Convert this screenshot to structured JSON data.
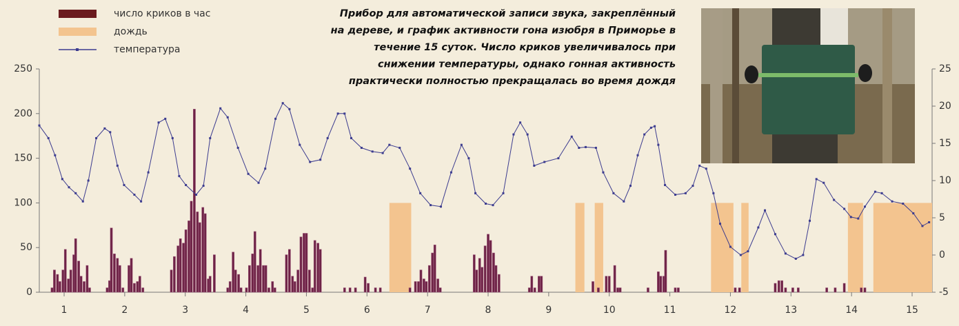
{
  "chart_data": {
    "type": "combo",
    "caption": [
      "Прибор для автоматической записи звука, закреплённый",
      "на дереве, и график активности гона изюбря в Приморье в",
      "течение 15 суток. Число криков увеличивалось при",
      "снижении температуры, однако гонная активность",
      "практически полностью прекращалась во время дождя"
    ],
    "legend": "upper left",
    "xlim": [
      0.59,
      15.33
    ],
    "xticks": [
      1,
      2,
      3,
      4,
      5,
      6,
      7,
      8,
      9,
      10,
      11,
      12,
      13,
      14,
      15
    ],
    "ylim": [
      0,
      250
    ],
    "yticks": [
      0,
      50,
      100,
      150,
      200,
      250
    ],
    "y2lim": [
      -5,
      25
    ],
    "y2ticks": [
      -5,
      0,
      5,
      10,
      15,
      20,
      25
    ],
    "series": [
      {
        "name": "число криков в час",
        "type": "bar",
        "color": "#6e2346",
        "x": [
          0.8,
          0.84,
          0.89,
          0.93,
          0.98,
          1.02,
          1.07,
          1.11,
          1.16,
          1.19,
          1.24,
          1.28,
          1.33,
          1.38,
          1.42,
          1.71,
          1.75,
          1.78,
          1.83,
          1.88,
          1.92,
          1.97,
          2.07,
          2.11,
          2.16,
          2.21,
          2.25,
          2.3,
          2.77,
          2.82,
          2.88,
          2.92,
          2.97,
          3.01,
          3.06,
          3.1,
          3.15,
          3.2,
          3.24,
          3.29,
          3.33,
          3.38,
          3.41,
          3.48,
          3.7,
          3.74,
          3.79,
          3.83,
          3.88,
          3.92,
          4.01,
          4.06,
          4.11,
          4.15,
          4.2,
          4.24,
          4.29,
          4.33,
          4.38,
          4.44,
          4.48,
          4.67,
          4.72,
          4.77,
          4.81,
          4.86,
          4.91,
          4.96,
          5.0,
          5.05,
          5.1,
          5.14,
          5.19,
          5.23,
          5.63,
          5.72,
          5.81,
          5.97,
          6.02,
          6.14,
          6.22,
          6.71,
          6.8,
          6.85,
          6.89,
          6.94,
          6.98,
          7.03,
          7.08,
          7.12,
          7.17,
          7.21,
          7.77,
          7.81,
          7.86,
          7.9,
          7.95,
          8.0,
          8.04,
          8.09,
          8.13,
          8.18,
          8.68,
          8.72,
          8.77,
          8.84,
          8.88,
          9.73,
          9.82,
          9.95,
          10.0,
          10.09,
          10.14,
          10.18,
          10.64,
          10.81,
          10.85,
          10.9,
          10.93,
          11.09,
          11.14,
          12.08,
          12.15,
          12.74,
          12.8,
          12.85,
          12.91,
          13.03,
          13.12,
          13.59,
          13.73,
          13.88,
          14.16,
          14.22
        ],
        "values": [
          5,
          25,
          20,
          12,
          25,
          48,
          15,
          25,
          42,
          60,
          35,
          18,
          12,
          30,
          5,
          5,
          13,
          72,
          43,
          38,
          30,
          5,
          30,
          38,
          10,
          12,
          18,
          5,
          25,
          40,
          52,
          60,
          55,
          70,
          80,
          102,
          205,
          90,
          78,
          95,
          88,
          15,
          18,
          42,
          5,
          12,
          45,
          25,
          20,
          5,
          5,
          30,
          43,
          68,
          30,
          48,
          30,
          30,
          5,
          12,
          5,
          42,
          48,
          18,
          12,
          25,
          62,
          66,
          66,
          25,
          5,
          58,
          55,
          48,
          5,
          5,
          5,
          17,
          10,
          5,
          5,
          5,
          12,
          12,
          25,
          15,
          12,
          30,
          44,
          53,
          15,
          5,
          42,
          25,
          38,
          28,
          52,
          65,
          58,
          44,
          30,
          20,
          5,
          18,
          5,
          18,
          18,
          12,
          5,
          18,
          18,
          30,
          5,
          5,
          5,
          23,
          18,
          18,
          47,
          5,
          5,
          5,
          5,
          10,
          13,
          13,
          5,
          5,
          5,
          5,
          5,
          10,
          5,
          5
        ]
      },
      {
        "name": "дождь",
        "type": "span",
        "color": "#f3c48f",
        "x": [
          6.37,
          9.44,
          9.76,
          11.68,
          12.18,
          13.94,
          14.36
        ],
        "x_end": [
          6.73,
          9.59,
          9.9,
          12.05,
          12.3,
          14.19,
          15.33
        ],
        "values": [
          100,
          100,
          100,
          100,
          100,
          100,
          100
        ]
      },
      {
        "name": "температура",
        "type": "line",
        "axis": "y2",
        "color": "#3b3b8f",
        "x": [
          0.59,
          0.74,
          0.85,
          0.97,
          1.08,
          1.19,
          1.31,
          1.4,
          1.53,
          1.67,
          1.76,
          1.88,
          1.99,
          2.16,
          2.27,
          2.39,
          2.56,
          2.67,
          2.79,
          2.9,
          3.01,
          3.18,
          3.3,
          3.41,
          3.58,
          3.7,
          3.87,
          4.04,
          4.21,
          4.32,
          4.49,
          4.61,
          4.72,
          4.89,
          5.06,
          5.23,
          5.35,
          5.52,
          5.63,
          5.74,
          5.91,
          6.09,
          6.26,
          6.37,
          6.54,
          6.71,
          6.88,
          7.05,
          7.22,
          7.39,
          7.56,
          7.68,
          7.79,
          7.96,
          8.08,
          8.25,
          8.42,
          8.53,
          8.65,
          8.76,
          8.93,
          9.16,
          9.38,
          9.5,
          9.61,
          9.78,
          9.9,
          10.07,
          10.24,
          10.35,
          10.47,
          10.58,
          10.69,
          10.75,
          10.81,
          10.92,
          11.09,
          11.26,
          11.38,
          11.49,
          11.6,
          11.72,
          11.83,
          12.0,
          12.17,
          12.29,
          12.46,
          12.57,
          12.74,
          12.91,
          13.08,
          13.2,
          13.31,
          13.42,
          13.54,
          13.71,
          13.88,
          13.99,
          14.11,
          14.22,
          14.39,
          14.5,
          14.67,
          14.85,
          15.02,
          15.17,
          15.28
        ],
        "values": [
          17.4,
          15.7,
          13.4,
          10.2,
          9.1,
          8.3,
          7.2,
          10,
          15.7,
          17,
          16.5,
          12,
          9.4,
          8.1,
          7.2,
          11.1,
          17.8,
          18.3,
          15.7,
          10.6,
          9.4,
          8.1,
          9.3,
          15.7,
          19.7,
          18.5,
          14.4,
          10.9,
          9.7,
          11.6,
          18.3,
          20.4,
          19.6,
          14.8,
          12.5,
          12.8,
          15.7,
          19,
          19,
          15.7,
          14.4,
          13.9,
          13.7,
          14.8,
          14.4,
          11.6,
          8.3,
          6.7,
          6.5,
          11.1,
          14.8,
          13,
          8.3,
          6.9,
          6.7,
          8.3,
          16.2,
          17.8,
          16.2,
          12,
          12.5,
          13,
          15.9,
          14.4,
          14.5,
          14.4,
          11.1,
          8.3,
          7.2,
          9.3,
          13.4,
          16.2,
          17.1,
          17.3,
          14.8,
          9.4,
          8.1,
          8.3,
          9.3,
          12,
          11.6,
          8.3,
          4.2,
          1.1,
          0,
          0.5,
          3.7,
          6,
          2.8,
          0.2,
          -0.5,
          0,
          4.6,
          10.2,
          9.7,
          7.4,
          6.2,
          5.1,
          4.9,
          6.5,
          8.5,
          8.3,
          7.2,
          6.9,
          5.6,
          3.9,
          4.4
        ]
      }
    ]
  }
}
